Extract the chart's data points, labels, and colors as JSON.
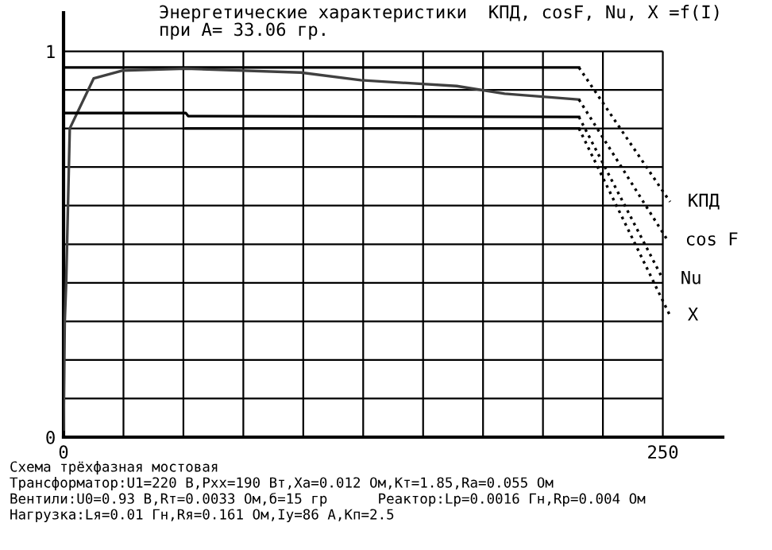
{
  "chart_data": {
    "type": "line",
    "title": "Энергетические характеристики  КПД, cosF, Nu, X =f(I)",
    "subtitle": "при A= 33.06 гр.",
    "xlim": [
      0,
      275
    ],
    "ylim": [
      0,
      1.1
    ],
    "xticks": [
      0,
      {
        "value": 25,
        "label": null
      },
      {
        "value": 50,
        "label": null
      },
      {
        "value": 75,
        "label": null
      },
      {
        "value": 100,
        "label": null
      },
      {
        "value": 125,
        "label": null
      },
      {
        "value": 150,
        "label": null
      },
      {
        "value": 175,
        "label": null
      },
      {
        "value": 200,
        "label": null
      },
      {
        "value": 225,
        "label": null
      },
      250
    ],
    "yticks": [
      0,
      {
        "value": 0.1,
        "label": null
      },
      {
        "value": 0.2,
        "label": null
      },
      {
        "value": 0.3,
        "label": null
      },
      {
        "value": 0.4,
        "label": null
      },
      {
        "value": 0.5,
        "label": null
      },
      {
        "value": 0.6,
        "label": null
      },
      {
        "value": 0.7,
        "label": null
      },
      {
        "value": 0.8,
        "label": null
      },
      {
        "value": 0.9,
        "label": null
      },
      1
    ],
    "grid": true,
    "legend": false,
    "series": [
      {
        "name": "КПД",
        "color": "#000000",
        "line_style": "solid",
        "x": [
          0,
          215
        ],
        "values": [
          0.958,
          0.958
        ]
      },
      {
        "name": "cos F",
        "color": "#404040",
        "line_style": "solid",
        "x": [
          0,
          0.5,
          1.1,
          2.6,
          12.6,
          24.5,
          51,
          99,
          124,
          164,
          184,
          215
        ],
        "values": [
          0.02,
          0.3,
          0.4,
          0.8,
          0.93,
          0.95,
          0.955,
          0.945,
          0.925,
          0.91,
          0.89,
          0.875
        ]
      },
      {
        "name": "Nu",
        "color": "#000000",
        "line_style": "solid",
        "x": [
          0,
          51,
          52,
          215
        ],
        "values": [
          0.84,
          0.84,
          0.832,
          0.83
        ]
      },
      {
        "name": "X",
        "color": "#000000",
        "line_style": "solid",
        "x": [
          51,
          215
        ],
        "values": [
          0.8,
          0.8
        ]
      },
      {
        "color": "#000000",
        "line_style": "dotted",
        "x": [
          215,
          253
        ],
        "values": [
          0.958,
          0.61
        ]
      },
      {
        "color": "#000000",
        "line_style": "dotted",
        "x": [
          215,
          252
        ],
        "values": [
          0.875,
          0.51
        ]
      },
      {
        "color": "#000000",
        "line_style": "dotted",
        "x": [
          215,
          250
        ],
        "values": [
          0.83,
          0.41
        ]
      },
      {
        "color": "#000000",
        "line_style": "dotted",
        "x": [
          215,
          253
        ],
        "values": [
          0.8,
          0.315
        ]
      }
    ],
    "annotations": [
      "Схема трёхфазная мостовая",
      "Трансформатор:U1=220 В,Pxx=190 Вт,Xa=0.012 Ом,Kт=1.85,Ra=0.055 Ом",
      "Вентили:U0=0.93 В,Rт=0.0033 Ом,б=15 гр      Реактор:Lр=0.0016 Гн,Rр=0.004 Ом",
      "Нагрузка:Lя=0.01 Гн,Rя=0.161 Ом,Iу=86 А,Kп=2.5"
    ]
  }
}
